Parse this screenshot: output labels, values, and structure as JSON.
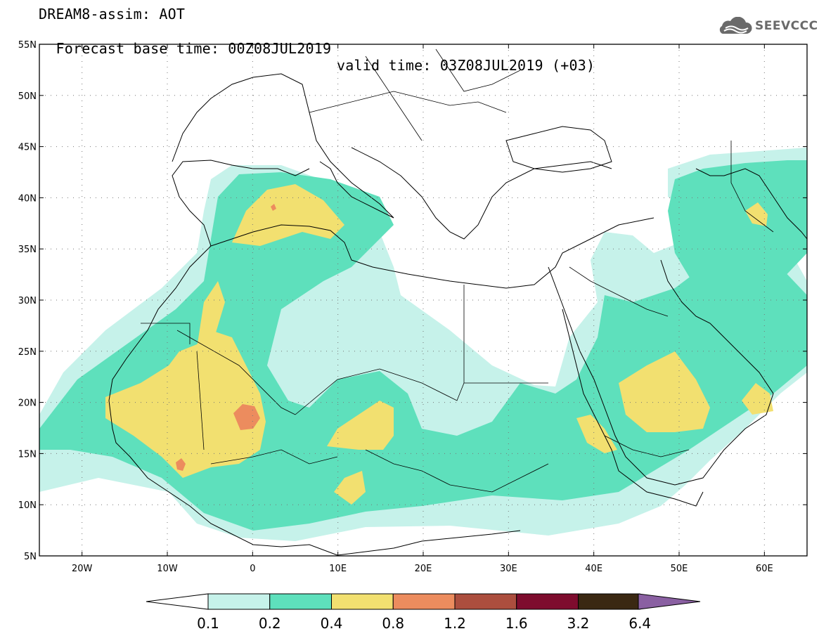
{
  "header": {
    "line1": "DREAM8-assim: AOT",
    "line2": "Forecast base time: 00Z08JUL2019",
    "valid": "valid time: 03Z08JUL2019 (+03)",
    "logo": "SEEVCCC",
    "logo_icon": "cloud-icon"
  },
  "map": {
    "lon_min": -25,
    "lon_max": 65,
    "lat_min": 5,
    "lat_max": 55,
    "lat_ticks": [
      "55N",
      "50N",
      "45N",
      "40N",
      "35N",
      "30N",
      "25N",
      "20N",
      "15N",
      "10N",
      "5N"
    ],
    "lon_ticks": [
      "20W",
      "10W",
      "0",
      "10E",
      "20E",
      "30E",
      "40E",
      "50E",
      "60E"
    ],
    "lon_tick_values": [
      -20,
      -10,
      0,
      10,
      20,
      30,
      40,
      50,
      60
    ],
    "lat_tick_values": [
      55,
      50,
      45,
      40,
      35,
      30,
      25,
      20,
      15,
      10,
      5
    ]
  },
  "colorbar": {
    "labels": [
      "0.1",
      "0.2",
      "0.4",
      "0.8",
      "1.2",
      "1.6",
      "3.2",
      "6.4"
    ],
    "colors": [
      "#c6f2ea",
      "#5ee0bc",
      "#f2e070",
      "#ec8c5e",
      "#ac4e3e",
      "#7e0c2e",
      "#3a2812",
      "#8a60a2"
    ],
    "under_color": "#ffffff"
  }
}
